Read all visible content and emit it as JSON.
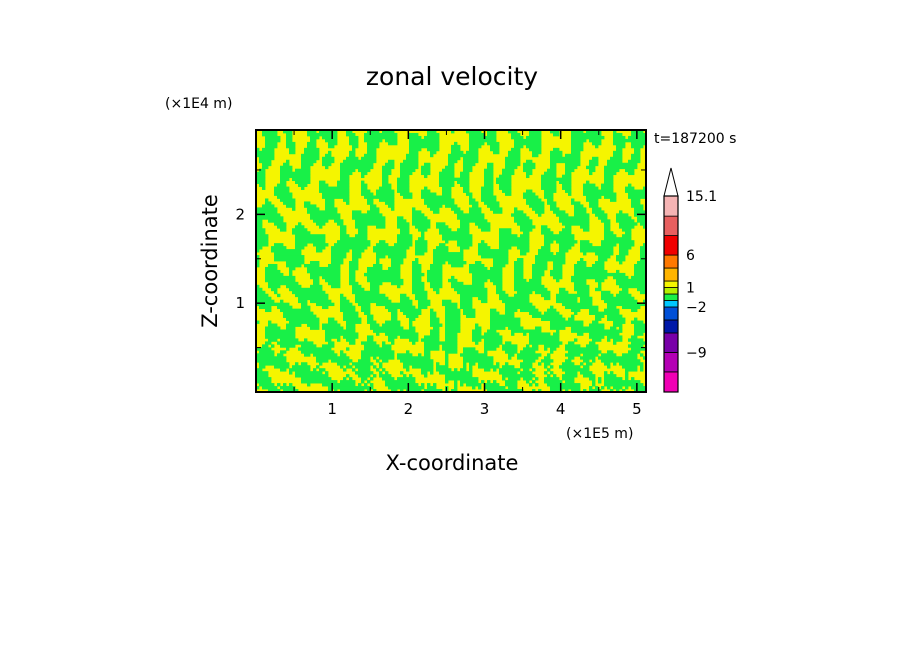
{
  "chart_data": {
    "type": "heatmap",
    "title": "zonal velocity",
    "xlabel": "X-coordinate",
    "ylabel": "Z-coordinate",
    "x_unit": "(×1E5 m)",
    "y_unit": "(×1E4 m)",
    "xlim": [
      0,
      5.12
    ],
    "ylim": [
      0,
      2.95
    ],
    "x_ticks": [
      1,
      2,
      3,
      4,
      5
    ],
    "x_tick_labels": [
      "1",
      "2",
      "3",
      "4",
      "5"
    ],
    "y_ticks": [
      1,
      2
    ],
    "y_tick_labels": [
      "1",
      "2"
    ],
    "time_label": "t=187200 s",
    "field_colors": {
      "positive_small": "#f5f500",
      "negative_small": "#18f048"
    },
    "colorbar": {
      "levels": [
        -15.1,
        -12,
        -9,
        -6,
        -4,
        -2,
        -1,
        0,
        1,
        2,
        4,
        6,
        9,
        12,
        15.1
      ],
      "colors": [
        "#f000b4",
        "#b400b4",
        "#7800a8",
        "#0018a8",
        "#0050d8",
        "#00c8ff",
        "#18f048",
        "#b4f000",
        "#f5f500",
        "#ffb400",
        "#ff7800",
        "#f00000",
        "#e86060",
        "#f5b4b4"
      ],
      "labels": [
        "15.1",
        "6",
        "1",
        "−2",
        "−9"
      ],
      "label_values": [
        15.1,
        6,
        1,
        -2,
        -9
      ],
      "extend_top": true,
      "extend_top_color": "#ffffff"
    }
  }
}
